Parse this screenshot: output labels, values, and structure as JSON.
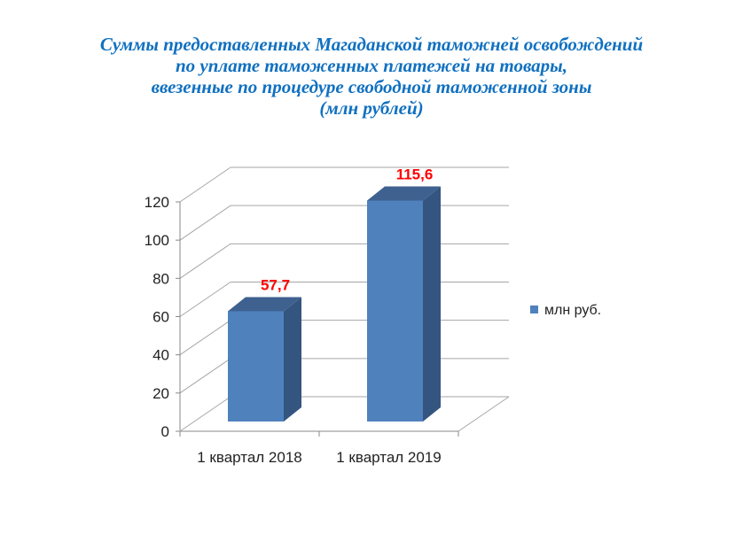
{
  "title_lines": [
    "Суммы предоставленных Магаданской таможней освобождений",
    "по уплате таможенных платежей на товары,",
    "ввезенные по процедуре свободной таможенной зоны",
    "(млн рублей)"
  ],
  "chart_data": {
    "type": "bar",
    "three_d": true,
    "title": "Суммы предоставленных Магаданской таможней освобождений по уплате таможенных платежей на товары, ввезенные по процедуре свободной таможенной зоны (млн рублей)",
    "categories": [
      "1 квартал 2018",
      "1 квартал 2019"
    ],
    "series": [
      {
        "name": "млн руб.",
        "values": [
          57.7,
          115.6
        ],
        "color": "#4F81BD"
      }
    ],
    "data_labels": [
      "57,7",
      "115,6"
    ],
    "data_label_color": "#FF0000",
    "ylim": [
      0,
      120
    ],
    "yticks": [
      "0",
      "20",
      "40",
      "60",
      "80",
      "100",
      "120"
    ],
    "grid": true,
    "legend": "right"
  }
}
